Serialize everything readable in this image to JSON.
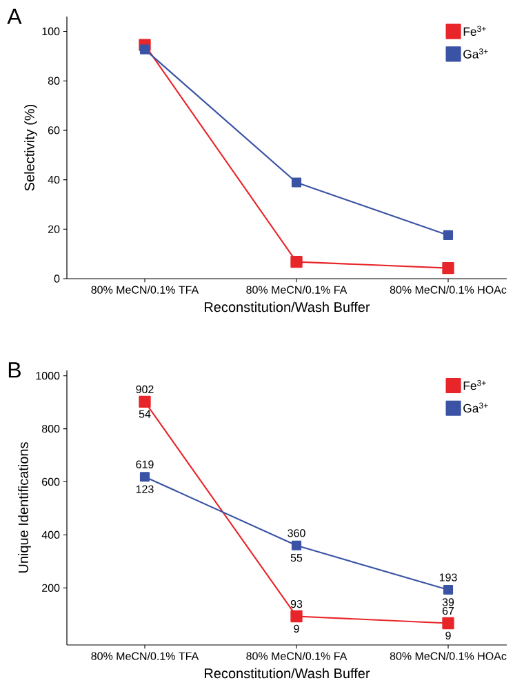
{
  "chart_data": [
    {
      "type": "line",
      "title": "A",
      "xlabel": "Reconstitution/Wash Buffer",
      "ylabel": "Selectivity (%)",
      "categories": [
        "80% MeCN/0.1% TFA",
        "80% MeCN/0.1% FA",
        "80% MeCN/0.1% HOAc"
      ],
      "series": [
        {
          "name": "Fe$^{3+}$",
          "color": "#e8262a",
          "values": [
            94.5,
            6.8,
            4.3
          ]
        },
        {
          "name": "Ga$^{3+}$",
          "color": "#3a53a4",
          "values": [
            92.7,
            38.9,
            17.6
          ]
        }
      ],
      "ylim": [
        0,
        106
      ],
      "yticks": [
        0,
        20,
        40,
        60,
        80,
        100
      ],
      "grid": false,
      "legend": "top right",
      "marker": "square",
      "line_style": "solid"
    },
    {
      "type": "line",
      "title": "B",
      "xlabel": "Reconstitution/Wash Buffer",
      "ylabel": "Unique Identifications",
      "categories": [
        "80% MeCN/0.1% TFA",
        "80% MeCN/0.1% FA",
        "80% MeCN/0.1% HOAc"
      ],
      "series": [
        {
          "name": "Fe$^{3+}$",
          "color": "#e8262a",
          "values": [
            902,
            93,
            67
          ]
        },
        {
          "name": "Ga$^{3+}$",
          "color": "#3a53a4",
          "values": [
            619,
            360,
            193
          ]
        }
      ],
      "annotations": [
        {
          "text": "54",
          "x": "80% MeCN/0.1% TFA",
          "y": 902
        },
        {
          "text": "9",
          "x": "80% MeCN/0.1% FA",
          "y": 93
        },
        {
          "text": "9",
          "x": "80% MeCN/0.1% HOAc",
          "y": 67
        },
        {
          "text": "123",
          "x": "80% MeCN/0.1% TFA",
          "y": 619
        },
        {
          "text": "55",
          "x": "80% MeCN/0.1% FA",
          "y": 360
        },
        {
          "text": "39",
          "x": "80% MeCN/0.1% HOAc",
          "y": 193
        }
      ],
      "data_labels": true,
      "ylim": [
        -15,
        1020
      ],
      "yticks": [
        200,
        400,
        600,
        800,
        1000
      ],
      "grid": false,
      "legend": "top right",
      "marker": "square",
      "line_style": "solid"
    }
  ]
}
